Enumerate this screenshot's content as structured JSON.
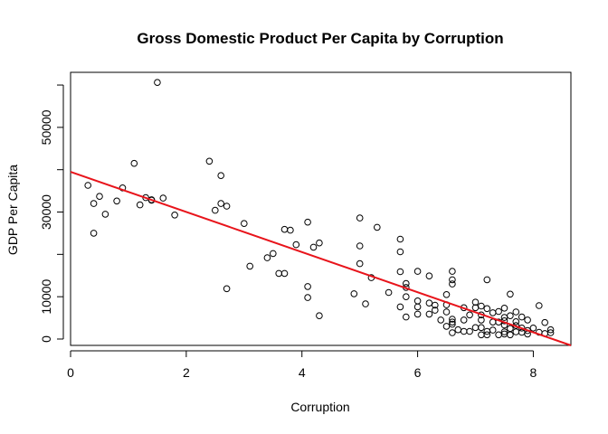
{
  "chart_data": {
    "type": "scatter",
    "title": "Gross Domestic Product Per Capita by Corruption",
    "xlabel": "Corruption",
    "ylabel": "GDP Per Capita",
    "xlim": [
      0,
      8.65
    ],
    "ylim": [
      -1500,
      63000
    ],
    "xticks": [
      0,
      2,
      4,
      6,
      8
    ],
    "yticks": [
      0,
      10000,
      30000,
      50000
    ],
    "y_minor_ticks": [
      20000,
      40000,
      60000
    ],
    "grid": false,
    "legend": "none",
    "colors": {
      "points": "#000000",
      "regression_line": "#e8141b",
      "frame": "#000000"
    },
    "regression_line": {
      "x": [
        0,
        8.65
      ],
      "y": [
        39500,
        -1500
      ]
    },
    "points": [
      [
        0.3,
        36300
      ],
      [
        0.4,
        32000
      ],
      [
        0.4,
        25000
      ],
      [
        0.5,
        33700
      ],
      [
        0.6,
        29500
      ],
      [
        0.8,
        32600
      ],
      [
        0.9,
        35700
      ],
      [
        1.1,
        41500
      ],
      [
        1.2,
        31700
      ],
      [
        1.3,
        33400
      ],
      [
        1.4,
        32900
      ],
      [
        1.4,
        32800
      ],
      [
        1.5,
        60600
      ],
      [
        1.6,
        33300
      ],
      [
        1.8,
        29300
      ],
      [
        2.4,
        42000
      ],
      [
        2.5,
        30400
      ],
      [
        2.6,
        38600
      ],
      [
        2.6,
        32000
      ],
      [
        2.7,
        31400
      ],
      [
        2.7,
        11900
      ],
      [
        3.0,
        27300
      ],
      [
        3.1,
        17200
      ],
      [
        3.4,
        19200
      ],
      [
        3.5,
        20200
      ],
      [
        3.6,
        15500
      ],
      [
        3.7,
        15500
      ],
      [
        3.7,
        25900
      ],
      [
        3.8,
        25700
      ],
      [
        3.9,
        22300
      ],
      [
        4.1,
        27600
      ],
      [
        4.1,
        12400
      ],
      [
        4.1,
        9800
      ],
      [
        4.2,
        21700
      ],
      [
        4.3,
        22700
      ],
      [
        4.3,
        5500
      ],
      [
        4.9,
        10700
      ],
      [
        5.0,
        28600
      ],
      [
        5.0,
        22000
      ],
      [
        5.0,
        17800
      ],
      [
        5.1,
        8300
      ],
      [
        5.2,
        14500
      ],
      [
        5.3,
        26400
      ],
      [
        5.5,
        11000
      ],
      [
        5.7,
        23600
      ],
      [
        5.7,
        20600
      ],
      [
        5.7,
        15900
      ],
      [
        5.7,
        7600
      ],
      [
        5.8,
        13100
      ],
      [
        5.8,
        12200
      ],
      [
        5.8,
        10000
      ],
      [
        5.8,
        5200
      ],
      [
        6.0,
        16000
      ],
      [
        6.0,
        9000
      ],
      [
        6.0,
        7600
      ],
      [
        6.0,
        5900
      ],
      [
        6.2,
        14900
      ],
      [
        6.2,
        8500
      ],
      [
        6.2,
        5900
      ],
      [
        6.3,
        8000
      ],
      [
        6.3,
        6800
      ],
      [
        6.4,
        4500
      ],
      [
        6.5,
        10500
      ],
      [
        6.5,
        8100
      ],
      [
        6.5,
        6400
      ],
      [
        6.5,
        3000
      ],
      [
        6.6,
        16000
      ],
      [
        6.6,
        14000
      ],
      [
        6.6,
        13000
      ],
      [
        6.6,
        4700
      ],
      [
        6.6,
        4000
      ],
      [
        6.6,
        3500
      ],
      [
        6.6,
        1500
      ],
      [
        6.7,
        2200
      ],
      [
        6.8,
        4500
      ],
      [
        6.8,
        7400
      ],
      [
        6.8,
        1800
      ],
      [
        6.9,
        5700
      ],
      [
        6.9,
        1800
      ],
      [
        7.0,
        8700
      ],
      [
        7.0,
        7400
      ],
      [
        7.0,
        2700
      ],
      [
        7.1,
        7800
      ],
      [
        7.1,
        5700
      ],
      [
        7.1,
        4500
      ],
      [
        7.1,
        2700
      ],
      [
        7.1,
        1000
      ],
      [
        7.2,
        14000
      ],
      [
        7.2,
        7200
      ],
      [
        7.2,
        1800
      ],
      [
        7.2,
        1000
      ],
      [
        7.3,
        6200
      ],
      [
        7.3,
        4000
      ],
      [
        7.3,
        2100
      ],
      [
        7.4,
        6500
      ],
      [
        7.4,
        4000
      ],
      [
        7.4,
        1000
      ],
      [
        7.5,
        7300
      ],
      [
        7.5,
        5100
      ],
      [
        7.5,
        4300
      ],
      [
        7.5,
        3300
      ],
      [
        7.5,
        1700
      ],
      [
        7.5,
        1200
      ],
      [
        7.6,
        10600
      ],
      [
        7.6,
        5500
      ],
      [
        7.6,
        2500
      ],
      [
        7.6,
        1000
      ],
      [
        7.7,
        6400
      ],
      [
        7.7,
        4100
      ],
      [
        7.7,
        3200
      ],
      [
        7.7,
        1700
      ],
      [
        7.8,
        5200
      ],
      [
        7.8,
        2600
      ],
      [
        7.8,
        1600
      ],
      [
        7.9,
        4500
      ],
      [
        7.9,
        2000
      ],
      [
        7.9,
        1200
      ],
      [
        8.0,
        2600
      ],
      [
        8.1,
        7900
      ],
      [
        8.1,
        1600
      ],
      [
        8.2,
        3900
      ],
      [
        8.2,
        1300
      ],
      [
        8.3,
        2200
      ],
      [
        8.3,
        1500
      ]
    ]
  }
}
